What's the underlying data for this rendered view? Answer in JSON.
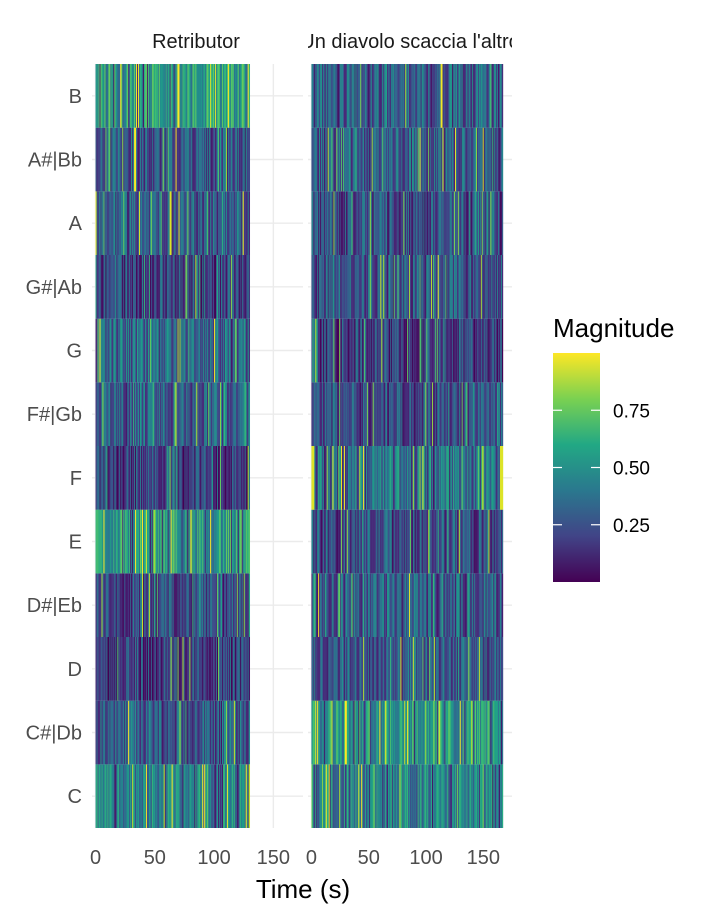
{
  "chart_data": {
    "type": "heatmap",
    "facets": [
      {
        "title": "Retributor",
        "duration": 130
      },
      {
        "title": "Un diavolo scaccia l'altro",
        "duration": 167
      }
    ],
    "y_categories": [
      "C",
      "C#|Db",
      "D",
      "D#|Eb",
      "E",
      "F",
      "F#|Gb",
      "G",
      "G#|Ab",
      "A",
      "A#|Bb",
      "B"
    ],
    "x_ticks": [
      0,
      50,
      100,
      150
    ],
    "x_range": [
      -3,
      175
    ],
    "xlabel": "Time (s)",
    "ylabel": "",
    "legend": {
      "title": "Magnitude",
      "ticks": [
        "0.25",
        "0.50",
        "0.75"
      ],
      "tick_values": [
        0.25,
        0.5,
        0.75
      ],
      "range": [
        0,
        1
      ],
      "colormap": "viridis",
      "position": "right"
    },
    "approx_mean_magnitude": {
      "Retributor": {
        "C": 0.45,
        "C#|Db": 0.32,
        "D": 0.2,
        "D#|Eb": 0.25,
        "E": 0.55,
        "F": 0.2,
        "F#|Gb": 0.32,
        "G": 0.35,
        "G#|Ab": 0.22,
        "A": 0.3,
        "A#|Bb": 0.3,
        "B": 0.55
      },
      "Un diavolo scaccia l'altro": {
        "C": 0.45,
        "C#|Db": 0.55,
        "D": 0.27,
        "D#|Eb": 0.3,
        "E": 0.25,
        "F": 0.4,
        "F#|Gb": 0.25,
        "G": 0.2,
        "G#|Ab": 0.3,
        "A": 0.25,
        "A#|Bb": 0.3,
        "B": 0.33
      }
    },
    "approx_edge_highlights": {
      "Un diavolo scaccia l'altro": {
        "F": 0.95
      }
    },
    "grid": true
  }
}
